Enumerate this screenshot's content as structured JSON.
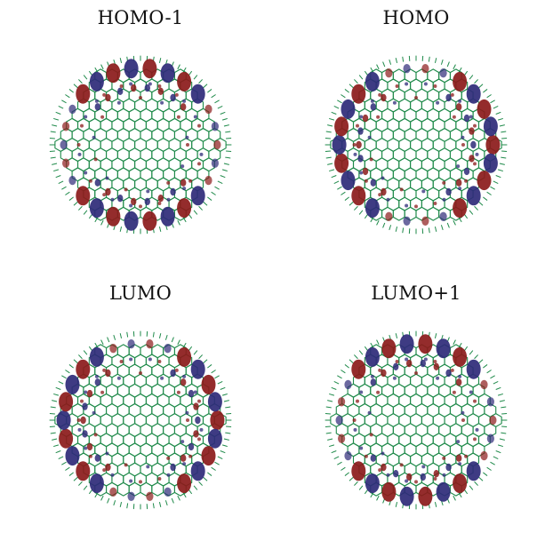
{
  "colors": {
    "lattice": "#1f8a4a",
    "lobe_positive": "#8b1a1a",
    "lobe_negative": "#2e2a78"
  },
  "panels": [
    {
      "id": "homo-1",
      "title": "HOMO-1",
      "pattern": "top-bottom-edges"
    },
    {
      "id": "homo",
      "title": "HOMO",
      "pattern": "side-edges"
    },
    {
      "id": "lumo",
      "title": "LUMO",
      "pattern": "side-edges"
    },
    {
      "id": "lumo+1",
      "title": "LUMO+1",
      "pattern": "top-bottom-edges"
    }
  ]
}
